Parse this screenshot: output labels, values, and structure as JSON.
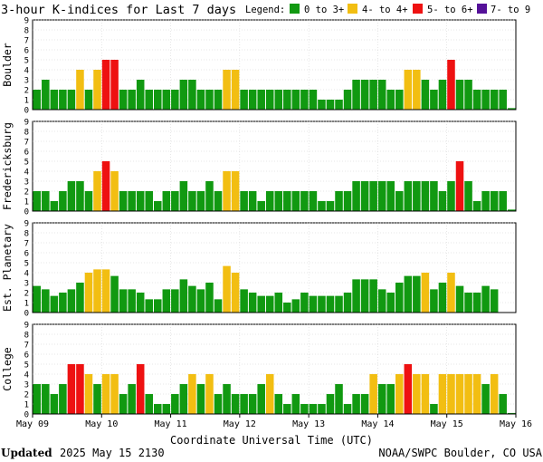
{
  "title": "3-hour K-indices for Last 7 days",
  "legend": {
    "label": "Legend:",
    "items": [
      {
        "label": "0 to 3+",
        "color": "#119911"
      },
      {
        "label": "4- to 4+",
        "color": "#f2be12"
      },
      {
        "label": "5- to 6+",
        "color": "#ee1111"
      },
      {
        "label": "7- to 9",
        "color": "#551199"
      }
    ]
  },
  "xlabel": "Coordinate Universal Time (UTC)",
  "footer": {
    "updated_label": "Updated",
    "updated_value": "2025 May 15 2130",
    "source": "NOAA/SWPC Boulder, CO USA"
  },
  "chart_data": {
    "type": "bar",
    "x_ticks": [
      "May 09",
      "May 10",
      "May 11",
      "May 12",
      "May 13",
      "May 14",
      "May 15",
      "May 16"
    ],
    "y_ticks": [
      "0",
      "1",
      "2",
      "3",
      "4",
      "5",
      "6",
      "7",
      "8",
      "9"
    ],
    "ylim": [
      0,
      9
    ],
    "bars_per_day": 8,
    "color_thresholds": {
      "green_max": 3.67,
      "yellow_max": 4.67,
      "red_max": 6.67
    },
    "panels": [
      {
        "name": "Boulder",
        "values": [
          2,
          3,
          2,
          2,
          2,
          4,
          2,
          4,
          5,
          5,
          2,
          2,
          3,
          2,
          2,
          2,
          2,
          3,
          3,
          2,
          2,
          2,
          4,
          4,
          2,
          2,
          2,
          2,
          2,
          2,
          2,
          2,
          2,
          1,
          1,
          1,
          2,
          3,
          3,
          3,
          3,
          2,
          2,
          4,
          4,
          3,
          2,
          3,
          5,
          3,
          3,
          2,
          2,
          2,
          2,
          0.15
        ]
      },
      {
        "name": "Fredericksburg",
        "values": [
          2,
          2,
          1,
          2,
          3,
          3,
          2,
          4,
          5,
          4,
          2,
          2,
          2,
          2,
          1,
          2,
          2,
          3,
          2,
          2,
          3,
          2,
          4,
          4,
          2,
          2,
          1,
          2,
          2,
          2,
          2,
          2,
          2,
          1,
          1,
          2,
          2,
          3,
          3,
          3,
          3,
          3,
          2,
          3,
          3,
          3,
          3,
          2,
          3,
          5,
          3,
          1,
          2,
          2,
          2,
          0.15
        ]
      },
      {
        "name": "Est. Planetary",
        "values": [
          2.67,
          2.33,
          1.67,
          2,
          2.33,
          3,
          4,
          4.33,
          4.33,
          3.67,
          2.33,
          2.33,
          2,
          1.33,
          1.33,
          2.33,
          2.33,
          3.33,
          2.67,
          2.33,
          3,
          1.33,
          4.67,
          4,
          2.33,
          2,
          1.67,
          1.67,
          2,
          1,
          1.33,
          2,
          1.67,
          1.67,
          1.67,
          1.67,
          2,
          3.33,
          3.33,
          3.33,
          2.33,
          2,
          3,
          3.67,
          3.67,
          4,
          2.33,
          3,
          4,
          2.67,
          2,
          2,
          2.67,
          2.33,
          0,
          0
        ]
      },
      {
        "name": "College",
        "values": [
          3,
          3,
          2,
          3,
          5,
          5,
          4,
          3,
          4,
          4,
          2,
          3,
          5,
          2,
          1,
          1,
          2,
          3,
          4,
          3,
          4,
          2,
          3,
          2,
          2,
          2,
          3,
          4,
          2,
          1,
          2,
          1,
          1,
          1,
          2,
          3,
          1,
          2,
          2,
          4,
          3,
          3,
          4,
          5,
          4,
          4,
          1,
          4,
          4,
          4,
          4,
          4,
          3,
          4,
          2,
          0.1
        ]
      }
    ]
  }
}
